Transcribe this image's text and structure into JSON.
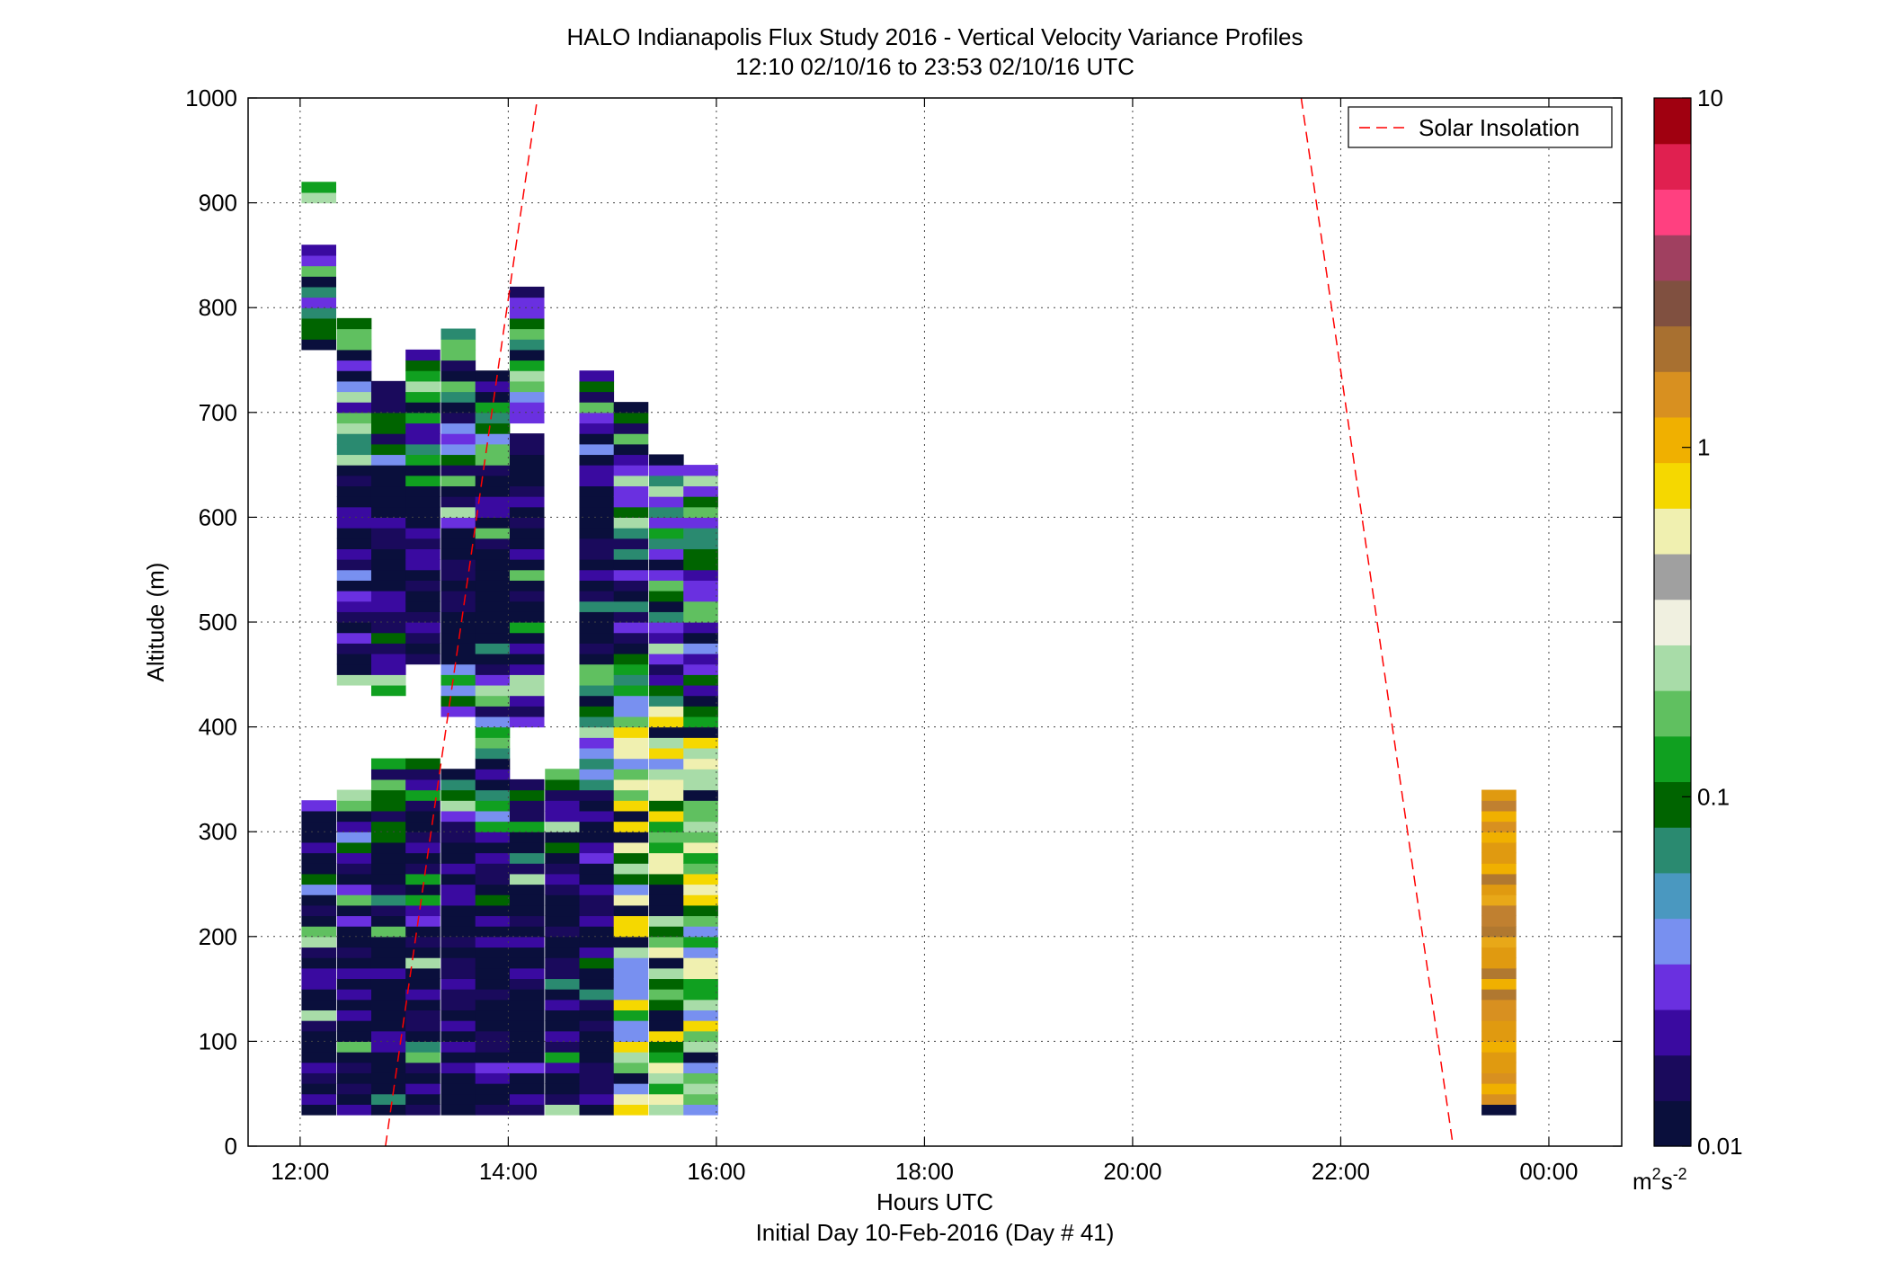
{
  "chart_data": {
    "type": "heatmap",
    "title": "HALO Indianapolis Flux Study 2016 - Vertical Velocity Variance Profiles",
    "subtitle": "12:10 02/10/16 to 23:53 02/10/16  UTC",
    "xlabel": "Hours UTC",
    "xlabel2": "Initial Day 10-Feb-2016 (Day # 41)",
    "ylabel": "Altitude (m)",
    "xlim": [
      11.5,
      24.7
    ],
    "ylim": [
      0,
      1000
    ],
    "x_ticks": [
      12,
      14,
      16,
      18,
      20,
      22,
      24
    ],
    "x_tick_labels": [
      "12:00",
      "14:00",
      "16:00",
      "18:00",
      "20:00",
      "22:00",
      "00:00"
    ],
    "y_ticks": [
      0,
      100,
      200,
      300,
      400,
      500,
      600,
      700,
      800,
      900,
      1000
    ],
    "y_tick_labels": [
      "0",
      "100",
      "200",
      "300",
      "400",
      "500",
      "600",
      "700",
      "800",
      "900",
      "1000"
    ],
    "grid": true,
    "legend": {
      "placement": "top-right",
      "entries": [
        {
          "label": "Solar Insolation",
          "color": "#ff0000",
          "style": "dashed"
        }
      ]
    },
    "colorbar": {
      "scale": "log",
      "range": [
        0.01,
        10
      ],
      "tick_values": [
        0.01,
        0.1,
        1,
        10
      ],
      "tick_labels": [
        "0.01",
        "0.1",
        "1",
        "10"
      ],
      "units_base": "m",
      "units_sup1": "2",
      "units_mid": "s",
      "units_sup2": "-2",
      "colors": [
        "#0a0f3c",
        "#1a0a5c",
        "#3a0aa0",
        "#6a30e0",
        "#7890f0",
        "#4a98c0",
        "#2a8a70",
        "#006400",
        "#10a020",
        "#60c060",
        "#a8dca8",
        "#f0f0e0",
        "#a0a0a0",
        "#f0f0b0",
        "#f5d800",
        "#f0b000",
        "#d89020",
        "#a87030",
        "#805040",
        "#a04060",
        "#ff4080",
        "#e02050",
        "#a00010"
      ]
    },
    "solar_insolation_segments": [
      {
        "x": [
          12.82,
          14.28
        ],
        "y": [
          0,
          1000
        ]
      },
      {
        "x": [
          21.62,
          23.08
        ],
        "y": [
          1000,
          0
        ]
      }
    ],
    "profiles": [
      {
        "t": 12.18,
        "z0": 30,
        "z1": 915,
        "gaps": [
          [
            335,
            760
          ],
          [
            860,
            900
          ]
        ]
      },
      {
        "t": 12.52,
        "z0": 30,
        "z1": 785,
        "gaps": [
          [
            340,
            435
          ]
        ]
      },
      {
        "t": 12.85,
        "z0": 30,
        "z1": 725,
        "gaps": [
          [
            370,
            430
          ]
        ]
      },
      {
        "t": 13.18,
        "z0": 30,
        "z1": 760,
        "gaps": [
          [
            370,
            460
          ]
        ]
      },
      {
        "t": 13.52,
        "z0": 30,
        "z1": 780,
        "gaps": [
          [
            360,
            410
          ]
        ]
      },
      {
        "t": 13.85,
        "z0": 30,
        "z1": 735,
        "gaps": []
      },
      {
        "t": 14.18,
        "z0": 30,
        "z1": 815,
        "gaps": [
          [
            355,
            400
          ],
          [
            680,
            690
          ]
        ]
      },
      {
        "t": 14.52,
        "z0": 30,
        "z1": 360,
        "gaps": []
      },
      {
        "t": 14.85,
        "z0": 30,
        "z1": 735,
        "gaps": []
      },
      {
        "t": 15.18,
        "z0": 30,
        "z1": 710,
        "gaps": []
      },
      {
        "t": 15.52,
        "z0": 30,
        "z1": 660,
        "gaps": []
      },
      {
        "t": 15.85,
        "z0": 30,
        "z1": 645,
        "gaps": []
      },
      {
        "t": 23.52,
        "z0": 30,
        "z1": 335,
        "gaps": []
      }
    ]
  }
}
